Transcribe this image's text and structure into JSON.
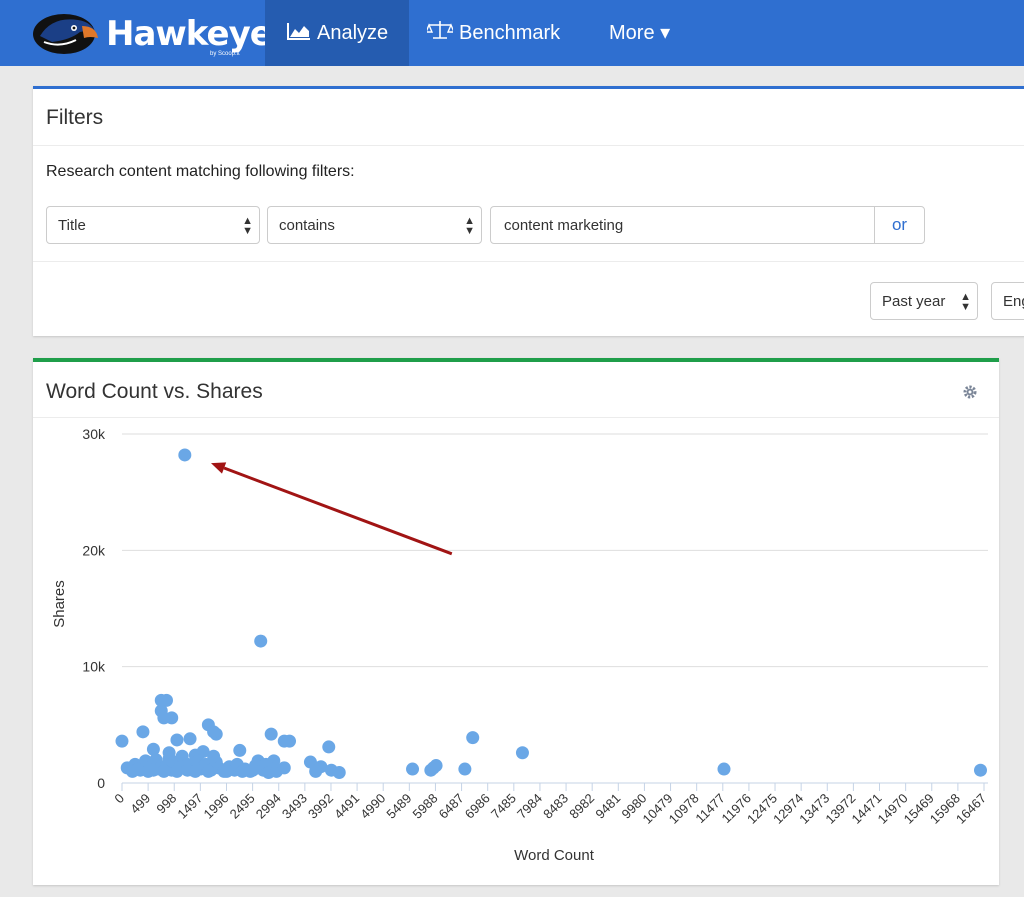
{
  "nav": {
    "brand": "Hawkeye",
    "brand_sub": "by Scoop.it",
    "items": [
      {
        "label": "Analyze",
        "icon": "area-chart-icon",
        "active": true
      },
      {
        "label": "Benchmark",
        "icon": "balance-scale-icon",
        "active": false
      },
      {
        "label": "More ▾",
        "icon": "",
        "active": false
      }
    ]
  },
  "filters": {
    "title": "Filters",
    "subtitle": "Research content matching following filters:",
    "field_select": "Title",
    "operator_select": "contains",
    "query_value": "content marketing",
    "or_label": "or",
    "time_select": "Past year",
    "language_select": "Eng"
  },
  "chart_panel": {
    "title": "Word Count vs. Shares",
    "settings_icon": "gear-icon",
    "accent": "#1f9e4a"
  },
  "chart_data": {
    "type": "scatter",
    "title": "Word Count vs. Shares",
    "xlabel": "Word Count",
    "ylabel": "Shares",
    "xlim": [
      0,
      16467
    ],
    "ylim": [
      0,
      30000
    ],
    "x_ticks": [
      "0",
      "499",
      "998",
      "1497",
      "1996",
      "2495",
      "2994",
      "3493",
      "3992",
      "4491",
      "4990",
      "5489",
      "5988",
      "6487",
      "6986",
      "7485",
      "7984",
      "8483",
      "8982",
      "9481",
      "9980",
      "10479",
      "10978",
      "11477",
      "11976",
      "12475",
      "12974",
      "13473",
      "13972",
      "14471",
      "14970",
      "15469",
      "15968",
      "16467"
    ],
    "y_ticks": [
      {
        "value": 0,
        "label": "0"
      },
      {
        "value": 10000,
        "label": "10k"
      },
      {
        "value": 20000,
        "label": "20k"
      },
      {
        "value": 30000,
        "label": "30k"
      }
    ],
    "grid": true,
    "point_color": "#6aa7e6",
    "annotation_color": "#a11414",
    "annotation": {
      "from": [
        6300,
        19700
      ],
      "to": [
        1700,
        27500
      ]
    },
    "points": [
      [
        1200,
        28200
      ],
      [
        2650,
        12200
      ],
      [
        750,
        7100
      ],
      [
        850,
        7100
      ],
      [
        750,
        6200
      ],
      [
        800,
        5600
      ],
      [
        950,
        5600
      ],
      [
        400,
        4400
      ],
      [
        1650,
        5000
      ],
      [
        1800,
        4200
      ],
      [
        1750,
        4400
      ],
      [
        2850,
        4200
      ],
      [
        0,
        3600
      ],
      [
        1050,
        3700
      ],
      [
        1300,
        3800
      ],
      [
        3100,
        3600
      ],
      [
        3200,
        3600
      ],
      [
        3950,
        3100
      ],
      [
        6700,
        3900
      ],
      [
        7650,
        2600
      ],
      [
        11500,
        1200
      ],
      [
        16400,
        1100
      ],
      [
        600,
        2900
      ],
      [
        900,
        2600
      ],
      [
        1400,
        2400
      ],
      [
        1550,
        2700
      ],
      [
        1750,
        2300
      ],
      [
        2250,
        2800
      ],
      [
        2600,
        1900
      ],
      [
        2900,
        1900
      ],
      [
        3600,
        1800
      ],
      [
        3800,
        1400
      ],
      [
        5550,
        1200
      ],
      [
        5900,
        1100
      ],
      [
        5950,
        1300
      ],
      [
        6000,
        1500
      ],
      [
        6550,
        1200
      ],
      [
        100,
        1300
      ],
      [
        250,
        1600
      ],
      [
        350,
        1100
      ],
      [
        450,
        1900
      ],
      [
        550,
        1400
      ],
      [
        650,
        2000
      ],
      [
        700,
        1200
      ],
      [
        850,
        1500
      ],
      [
        900,
        2100
      ],
      [
        950,
        1100
      ],
      [
        1000,
        1800
      ],
      [
        1100,
        1300
      ],
      [
        1150,
        2300
      ],
      [
        1250,
        1600
      ],
      [
        1350,
        1100
      ],
      [
        1450,
        1900
      ],
      [
        1500,
        1200
      ],
      [
        1600,
        1600
      ],
      [
        1700,
        1100
      ],
      [
        1800,
        1800
      ],
      [
        1850,
        1300
      ],
      [
        1950,
        1000
      ],
      [
        2050,
        1400
      ],
      [
        2150,
        1100
      ],
      [
        2200,
        1600
      ],
      [
        2350,
        1200
      ],
      [
        2450,
        1000
      ],
      [
        2550,
        1500
      ],
      [
        2700,
        1100
      ],
      [
        2750,
        1600
      ],
      [
        2800,
        900
      ],
      [
        2950,
        1000
      ],
      [
        3100,
        1300
      ],
      [
        3700,
        1000
      ],
      [
        4000,
        1100
      ],
      [
        4150,
        900
      ],
      [
        200,
        1000
      ],
      [
        300,
        1200
      ],
      [
        500,
        1000
      ],
      [
        600,
        1100
      ],
      [
        800,
        1000
      ],
      [
        1050,
        1000
      ],
      [
        1250,
        1100
      ],
      [
        1400,
        1000
      ],
      [
        1650,
        1000
      ],
      [
        2000,
        1000
      ],
      [
        2300,
        1000
      ],
      [
        2500,
        1100
      ]
    ]
  }
}
